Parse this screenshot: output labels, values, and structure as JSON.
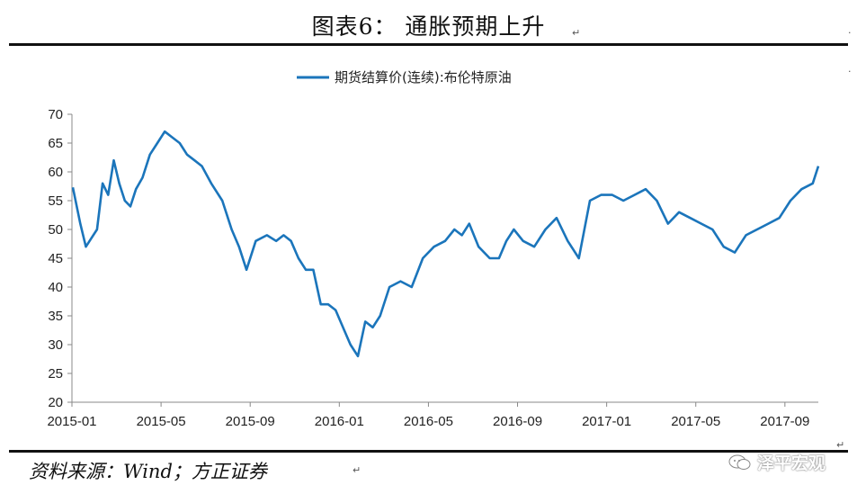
{
  "header": {
    "title": "图表6：  通胀预期上升"
  },
  "footer": {
    "source": "资料来源：Wind；方正证券",
    "watermark": "泽平宏观"
  },
  "chart_data": {
    "type": "line",
    "legend_position": "top-center",
    "grid": false,
    "ylim": [
      20,
      70
    ],
    "yticks": [
      "70",
      "65",
      "60",
      "55",
      "50",
      "45",
      "40",
      "35",
      "30",
      "25",
      "20"
    ],
    "xticks": [
      "2015-01",
      "2015-05",
      "2015-09",
      "2016-01",
      "2016-05",
      "2016-09",
      "2017-01",
      "2017-05",
      "2017-09"
    ],
    "series": [
      {
        "name": "期货结算价(连续):布伦特原油",
        "color": "#1b75bb",
        "x": [
          "2015-01",
          "2015-01",
          "2015-01",
          "2015-01",
          "2015-02",
          "2015-02",
          "2015-02",
          "2015-02",
          "2015-03",
          "2015-03",
          "2015-03",
          "2015-03",
          "2015-04",
          "2015-04",
          "2015-04",
          "2015-05",
          "2015-05",
          "2015-05",
          "2015-06",
          "2015-06",
          "2015-06",
          "2015-07",
          "2015-07",
          "2015-08",
          "2015-08",
          "2015-08",
          "2015-09",
          "2015-09",
          "2015-10",
          "2015-10",
          "2015-10",
          "2015-11",
          "2015-11",
          "2015-11",
          "2015-12",
          "2015-12",
          "2015-12",
          "2016-01",
          "2016-01",
          "2016-01",
          "2016-02",
          "2016-02",
          "2016-02",
          "2016-03",
          "2016-03",
          "2016-04",
          "2016-04",
          "2016-05",
          "2016-05",
          "2016-06",
          "2016-06",
          "2016-06",
          "2016-07",
          "2016-07",
          "2016-08",
          "2016-08",
          "2016-08",
          "2016-09",
          "2016-09",
          "2016-10",
          "2016-10",
          "2016-11",
          "2016-11",
          "2016-12",
          "2016-12",
          "2017-01",
          "2017-01",
          "2017-02",
          "2017-02",
          "2017-03",
          "2017-03",
          "2017-04",
          "2017-04",
          "2017-05",
          "2017-05",
          "2017-06",
          "2017-06",
          "2017-07",
          "2017-07",
          "2017-08",
          "2017-08",
          "2017-09",
          "2017-09",
          "2017-10",
          "2017-10"
        ],
        "y": [
          57.3,
          51,
          47,
          48.5,
          50,
          58,
          56,
          62,
          58,
          55,
          54,
          57,
          59,
          63,
          65,
          67,
          66,
          65,
          63,
          62,
          61,
          58,
          55,
          50,
          47,
          43,
          48,
          49,
          48,
          49,
          48,
          45,
          43,
          43,
          37,
          37,
          36,
          33,
          30,
          28,
          34,
          33,
          35,
          40,
          41,
          40,
          45,
          47,
          48,
          50,
          49,
          51,
          47,
          45,
          45,
          48,
          50,
          48,
          47,
          50,
          52,
          48,
          45,
          55,
          56,
          56,
          55,
          56,
          57,
          55,
          51,
          53,
          52,
          51,
          50,
          47,
          46,
          49,
          50,
          51,
          52,
          55,
          57,
          58,
          61
        ]
      }
    ]
  }
}
